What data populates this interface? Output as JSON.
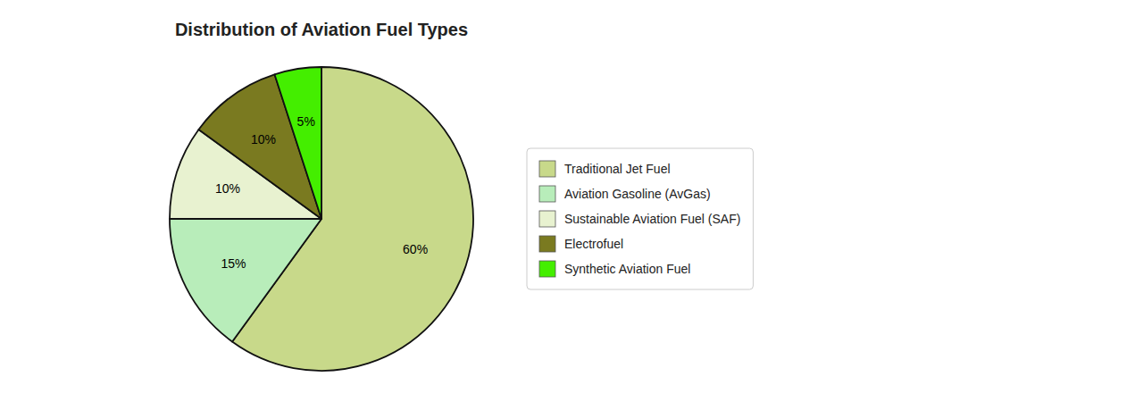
{
  "chart_data": {
    "type": "pie",
    "title": "Distribution of Aviation Fuel Types",
    "categories": [
      "Traditional Jet Fuel",
      "Aviation Gasoline (AvGas)",
      "Sustainable Aviation Fuel (SAF)",
      "Electrofuel",
      "Synthetic Aviation Fuel"
    ],
    "values": [
      60,
      15,
      10,
      10,
      5
    ],
    "value_labels": [
      "60%",
      "15%",
      "10%",
      "10%",
      "5%"
    ],
    "colors": [
      "#c8d98a",
      "#b8edba",
      "#e8f2d0",
      "#7a7a20",
      "#44ee00"
    ],
    "data_labels": true,
    "legend": "right"
  }
}
